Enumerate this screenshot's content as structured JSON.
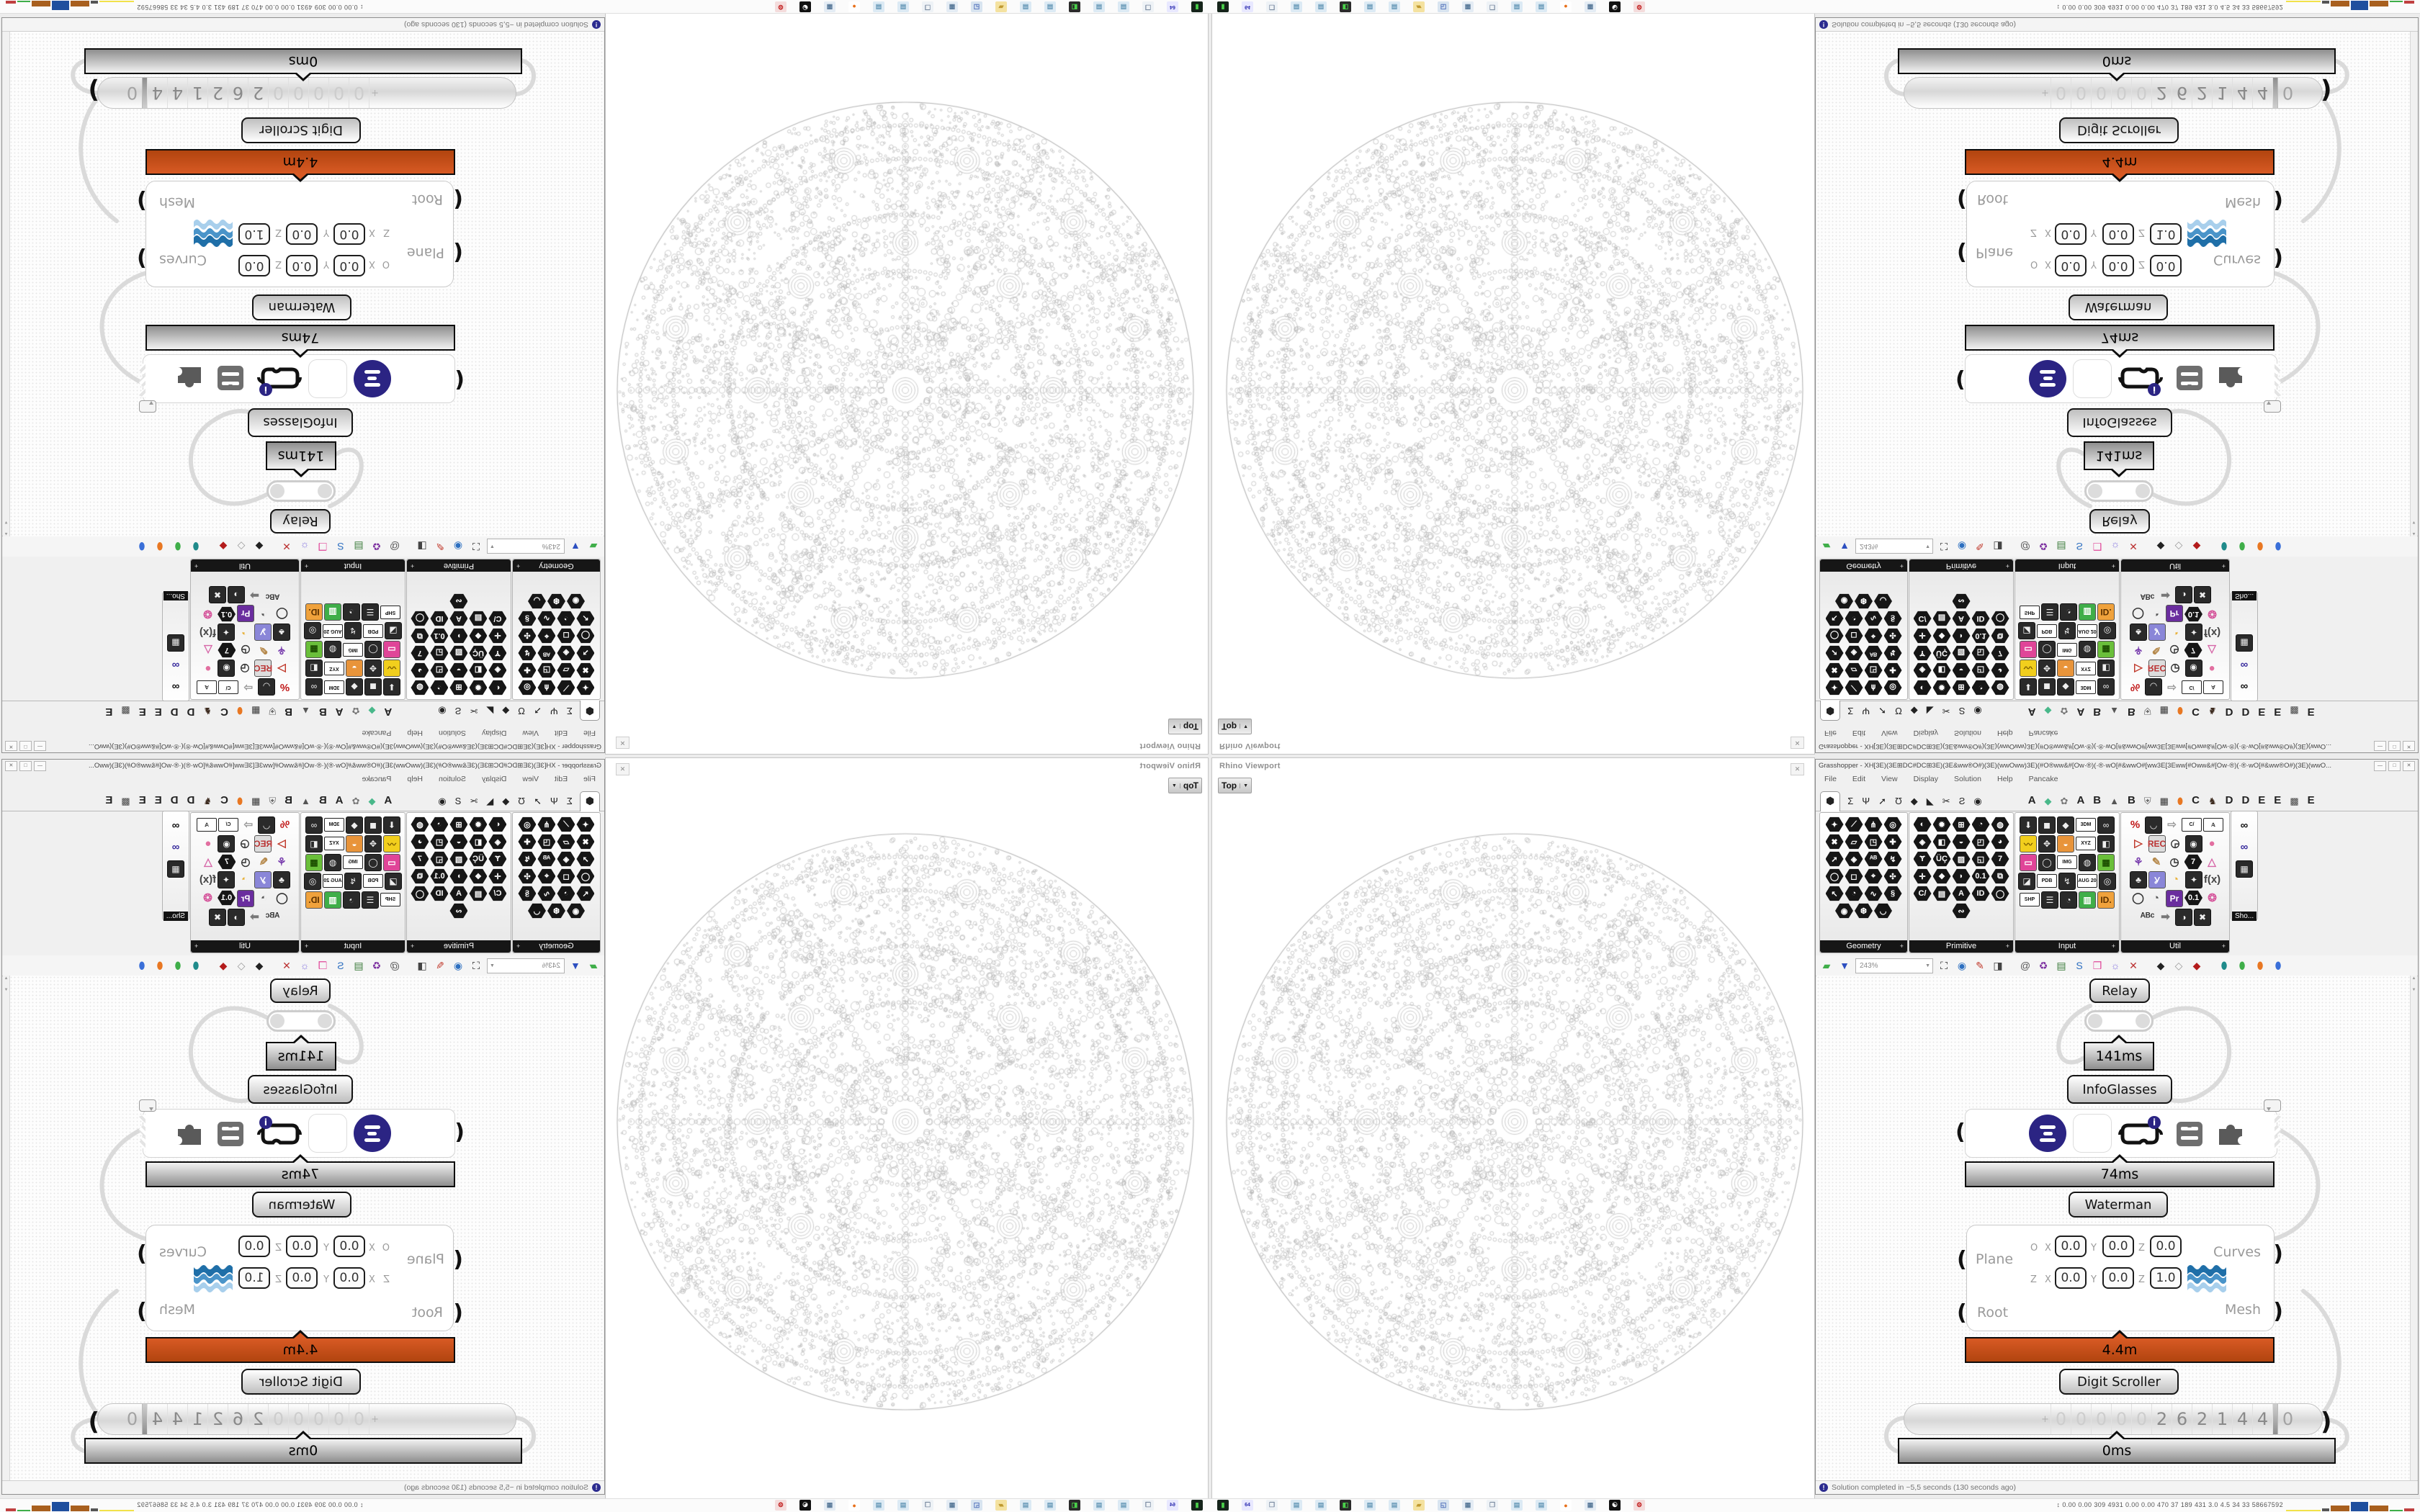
{
  "rhino": {
    "panel_title": "Rhino Viewport",
    "close_glyph": "✕",
    "viewport_tab": "Top",
    "viewport_caret": "▼",
    "render_desc": "dense circle-packed sphere wireframe, top view"
  },
  "gh": {
    "title": "Grasshopper - XH[3E)(3E⊞DC#DC⊞3E)(3E&ww®O#)(3E)(wwOww)3E)(#O®ww&#[Ow·®)(·®·wO[#&wwO#[ww3E[3Eww[#Oww&#[Ow·®)(·®·wO[#&ww®O#)(3E)(wwO...",
    "window_buttons": [
      "—",
      "□",
      "✕"
    ],
    "menu": [
      "File",
      "Edit",
      "View",
      "Display",
      "Solution",
      "Help",
      "Pancake"
    ],
    "tabs": [
      {
        "g": "⬢",
        "sel": true,
        "name": "params"
      },
      {
        "g": "Σ",
        "name": "maths"
      },
      {
        "g": "Ψ",
        "name": "sets"
      },
      {
        "g": "➚",
        "name": "vector"
      },
      {
        "g": "Ʊ",
        "name": "curve"
      },
      {
        "g": "◆",
        "name": "surface"
      },
      {
        "g": "◣",
        "name": "mesh"
      },
      {
        "g": "✂",
        "name": "intersect"
      },
      {
        "g": "Ƨ",
        "name": "transform"
      },
      {
        "g": "◉",
        "name": "display"
      },
      {
        "sp": 52
      },
      {
        "g": "A",
        "letter": true
      },
      {
        "g": "◆",
        "c": "#49b88a"
      },
      {
        "g": "✿",
        "c": "#777"
      },
      {
        "g": "A",
        "letter": true
      },
      {
        "g": "B",
        "letter": true
      },
      {
        "g": "▲",
        "c": "#555"
      },
      {
        "g": "B",
        "letter": true
      },
      {
        "g": "⛨",
        "c": "#666"
      },
      {
        "g": "▦",
        "c": "#333"
      },
      {
        "g": "⬮",
        "c": "#e87722"
      },
      {
        "g": "C",
        "letter": true
      },
      {
        "g": "♞",
        "c": "#3d2b1f"
      },
      {
        "g": "D",
        "letter": true
      },
      {
        "g": "D",
        "letter": true
      },
      {
        "g": "E",
        "letter": true
      },
      {
        "g": "E",
        "letter": true
      },
      {
        "g": "▩",
        "c": "#444"
      },
      {
        "g": "E",
        "letter": true
      }
    ],
    "panels": [
      {
        "label": "Geometry",
        "more": "+",
        "icons": [
          "x|✦",
          "x|⟋",
          "x|⋔",
          "x|◎",
          "x|✖",
          "x|▱",
          "x|◳",
          "x|✚",
          "x|➚",
          "x|◈",
          "x|ᴬᴮ",
          "x|↯",
          "x|◯",
          "x|◻",
          "x|⌖",
          "x|✣",
          "x|↖",
          "x|◔",
          "x|∿",
          "x|§",
          "x|◉",
          "x|❆",
          "x|◡"
        ]
      },
      {
        "label": "Primitive",
        "more": "+",
        "icons": [
          "x|◐",
          "x|✹",
          "x|⊞",
          "x|◔",
          "x|◍",
          "x|◈",
          "x|◧",
          "x|◒",
          "x|◰",
          "x|◕",
          "x|Ɏ",
          "x|ÜÇ",
          "x|▨",
          "x|◱",
          "x|7",
          "x|✛",
          "x|❖",
          "x|◗",
          "x|0.1",
          "x|⧉",
          "x|C/",
          "x|▤",
          "x|A",
          "x|ID",
          "x|◯",
          "x|∾"
        ]
      },
      {
        "label": "Input",
        "more": "+",
        "icons": [
          "s|⬇",
          "s|◼",
          "s|◆",
          "t|3DM",
          "s|∞",
          "c|〰|#f2cf1d|#7a5b00",
          "s|✥",
          "c|◒|#e8943a|#fff",
          "t|XYZ",
          "s|◧",
          "c|▭|#e04598|#fff",
          "s|◯",
          "t|IMG",
          "s|◍",
          "c|▦|#6abf3a|#1c4d00",
          "s|◪",
          "t|PDB",
          "s|↯",
          "t|AUG 20",
          "s|◎",
          "t|SHP",
          "s|☰",
          "s|◔",
          "c|▥|#3fae49|#fff",
          "c|ID.|#f0a23c|#5a3000"
        ]
      },
      {
        "label": "Util",
        "more": "+",
        "icons": [
          "g|%|#c01818",
          "s|◡",
          "g|⇨|#9a9a9a",
          "t|C/",
          "t|𝔸",
          "g|▷|#c0392b",
          "c|REC|#ddd|#b33",
          "g|◶|#333",
          "s|◉",
          "g|●|#e26fa0",
          "g|⚘|#7a3fae",
          "g|✎|#b5884a",
          "g|◷|#333",
          "x|7",
          "g|△|#d667a8",
          "s|♣",
          "c|Ỿ|#8a86d8|#fff",
          "g|◔|#e8b23a",
          "s|✦",
          "g|f(x)|#444",
          "g|◯|#333",
          "g|◔|#555",
          "c|Pr|#6a2d9e|#fff",
          "x|0.1",
          "g|❂|#d65a9e",
          "g|ᴬᴮᶜ|#333",
          "g|➡|#777",
          "s|◑",
          "s|✖"
        ]
      },
      {
        "label": "Sho...",
        "icons": [
          "g|∞|#111",
          "g|∞|#3a2d9e",
          "s|▦"
        ]
      }
    ],
    "toolbar": {
      "zoom": "243%",
      "zoom_caret": "▼",
      "items": [
        {
          "g": "▰",
          "c": "#3fae49",
          "name": "open-file"
        },
        {
          "g": "▼",
          "c": "#2d4fc0",
          "name": "save-file"
        },
        {
          "zoom": true
        },
        {
          "g": "⛶",
          "c": "#222",
          "name": "zoom-extents"
        },
        {
          "g": "◉",
          "c": "#2d6fc0",
          "name": "preview"
        },
        {
          "g": "✎",
          "c": "#c0392b",
          "name": "sketch"
        },
        {
          "g": "◨",
          "c": "#444",
          "name": "exit"
        },
        {
          "sep": true
        },
        {
          "g": "@",
          "c": "#555",
          "name": "at"
        },
        {
          "g": "♻",
          "c": "#7a2d9e",
          "name": "gha"
        },
        {
          "g": "▤",
          "c": "#3a7a3a",
          "name": "doc"
        },
        {
          "g": "S",
          "c": "#2d6fc0",
          "name": "search"
        },
        {
          "g": "❒",
          "c": "#e04598",
          "name": "package"
        },
        {
          "g": "☼",
          "c": "#8a7ae0",
          "name": "bulb"
        },
        {
          "g": "✕",
          "c": "#b33",
          "name": "dna"
        },
        {
          "sep": true
        },
        {
          "g": "◆",
          "c": "#222",
          "name": "black-gem"
        },
        {
          "g": "◇",
          "c": "#999",
          "name": "white-gem"
        },
        {
          "g": "◆",
          "c": "#b31b1b",
          "name": "red-gem"
        },
        {
          "sep": true
        },
        {
          "g": "⬮",
          "c": "#1f8a8a",
          "name": "teal-ball"
        },
        {
          "g": "⬮",
          "c": "#3fae49",
          "name": "green-ball"
        },
        {
          "g": "⬮",
          "c": "#e87722",
          "name": "orange-ball"
        },
        {
          "g": "⬮",
          "c": "#3a6fd8",
          "name": "blue-ball"
        }
      ]
    },
    "canvas": {
      "relay": {
        "label": "Relay",
        "time": "141ms"
      },
      "infoglasses": {
        "label": "InfoGlasses",
        "time": "74ms",
        "buttons": [
          "list-circle",
          "grid",
          "goggles-badged",
          "archive",
          "puzzle"
        ]
      },
      "waterman": {
        "label": "Waterman",
        "time": "4.4m",
        "inputs": [
          "Plane",
          "Root"
        ],
        "outputs": [
          "Curves",
          "Mesh"
        ],
        "row1": {
          "k": "O",
          "kx": "X",
          "x": "0.0",
          "ky": "Y",
          "y": "0.0",
          "kz": "Z",
          "z": "0.0"
        },
        "row2": {
          "k": "Z",
          "kx": "X",
          "x": "0.0",
          "ky": "Y",
          "y": "0.0",
          "kz": "Z",
          "z": "1.0"
        }
      },
      "scroller": {
        "label": "Digit Scroller",
        "time": "0ms",
        "sign": "+",
        "leading": "00000",
        "value": "262144",
        "decimal": "0"
      }
    },
    "status": {
      "text": "Solution completed in ~5,5 seconds (130 seconds ago)"
    }
  },
  "taskbar": {
    "icons": [
      {
        "g": "▮",
        "bg": "#15241a",
        "fg": "#4ad24a",
        "name": "terminal"
      },
      {
        "g": "64",
        "bg": "#e8e8ff",
        "fg": "#2d2db0",
        "name": "floppy-64"
      },
      {
        "g": "❒",
        "bg": "#eef2f6",
        "fg": "#7a8aa0",
        "name": "doc-printer"
      },
      {
        "g": "▤",
        "bg": "#dceaf4",
        "fg": "#6a9ab8",
        "name": "notepad"
      },
      {
        "g": "▤",
        "bg": "#dceaf4",
        "fg": "#6a9ab8",
        "name": "notepad"
      },
      {
        "g": "◧",
        "bg": "#2a2a2a",
        "fg": "#4ad24a",
        "name": "monitor-graph"
      },
      {
        "g": "▤",
        "bg": "#dceaf4",
        "fg": "#6a9ab8",
        "name": "notepad"
      },
      {
        "g": "▤",
        "bg": "#dceaf4",
        "fg": "#6a9ab8",
        "name": "notepad"
      },
      {
        "g": "▰",
        "bg": "#f4e2a0",
        "fg": "#c09a30",
        "name": "folder"
      },
      {
        "g": "◱",
        "bg": "#d8e4f0",
        "fg": "#4a6ab8",
        "name": "pc-gear"
      },
      {
        "g": "▦",
        "bg": "#e4ecf4",
        "fg": "#5a7a9a",
        "name": "calculator"
      },
      {
        "g": "❒",
        "bg": "#eef2f6",
        "fg": "#7a8aa0",
        "name": "doc-printer"
      },
      {
        "g": "▤",
        "bg": "#dceaf4",
        "fg": "#6a9ab8",
        "name": "notepad"
      },
      {
        "g": "▤",
        "bg": "#dceaf4",
        "fg": "#6a9ab8",
        "name": "notepad"
      },
      {
        "g": "●",
        "bg": "#fff",
        "fg": "#e8701a",
        "name": "firefox"
      },
      {
        "g": "▦",
        "bg": "#e4ecf4",
        "fg": "#5a7a9a",
        "name": "calculator"
      },
      {
        "g": "☯",
        "bg": "#111",
        "fg": "#fff",
        "name": "panda-app"
      },
      {
        "g": "⚙",
        "bg": "#f4dcdc",
        "fg": "#c01818",
        "name": "red-gear"
      }
    ],
    "stats_arrow": "↕",
    "stats": "0.00 0.00 309 4931 0.00 0.00 470  37  189  431  3.0  4.5  34  33  58667592",
    "blocks": [
      {
        "w": 48,
        "h": 2,
        "c": "#f2e24a"
      },
      {
        "w": 10,
        "h": 4,
        "c": "#555"
      },
      {
        "w": 26,
        "h": 8,
        "c": "#a85f1e"
      },
      {
        "w": 24,
        "h": 13,
        "c": "#1f4f9e"
      },
      {
        "w": 26,
        "h": 8,
        "c": "#a85f1e"
      },
      {
        "w": 18,
        "h": 2,
        "c": "#3fae49"
      },
      {
        "w": 14,
        "h": 4,
        "c": "#c04040"
      }
    ]
  }
}
